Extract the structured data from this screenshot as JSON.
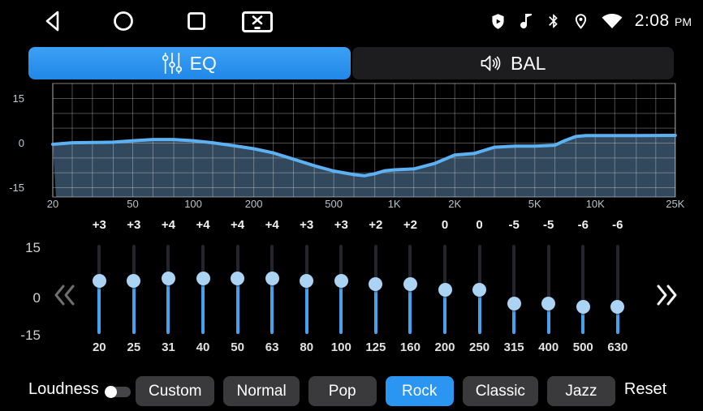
{
  "colors": {
    "accent": "#2b96f2",
    "tab_inactive_bg": "#1d1d20",
    "slider_track": "#24262b",
    "slider_fill": "#45a2ea",
    "slider_thumb": "#abd4f4",
    "curve_line": "#5cb1f2",
    "curve_fill": "rgba(118,172,222,0.42)",
    "grid_line": "rgba(255,255,255,0.30)",
    "button_bg": "#3a3a3c"
  },
  "status_bar": {
    "time": "2:08",
    "time_period": "PM",
    "nav_icons": [
      {
        "name": "back-icon",
        "shape": "triangle-left-outline"
      },
      {
        "name": "home-icon",
        "shape": "circle-outline"
      },
      {
        "name": "recents-icon",
        "shape": "square-outline"
      },
      {
        "name": "screenshot-icon",
        "shape": "monitor-with-x"
      }
    ],
    "status_icons": [
      {
        "name": "security-shield-icon",
        "shape": "shield-with-play"
      },
      {
        "name": "music-note-icon",
        "shape": "eighth-note"
      },
      {
        "name": "bluetooth-icon",
        "shape": "bluetooth-rune"
      },
      {
        "name": "location-icon",
        "shape": "map-pin"
      },
      {
        "name": "wifi-icon",
        "shape": "wifi-wedge"
      }
    ]
  },
  "tabs": [
    {
      "label": "EQ",
      "icon": "equalizer-sliders-icon",
      "active": true
    },
    {
      "label": "BAL",
      "icon": "speaker-volume-icon",
      "active": false
    }
  ],
  "graph": {
    "y_labels": [
      "15",
      "0",
      "-15"
    ],
    "x_labels": [
      {
        "text": "20",
        "freq": 20
      },
      {
        "text": "50",
        "freq": 50
      },
      {
        "text": "100",
        "freq": 100
      },
      {
        "text": "200",
        "freq": 200
      },
      {
        "text": "500",
        "freq": 500
      },
      {
        "text": "1K",
        "freq": 1000
      },
      {
        "text": "2K",
        "freq": 2000
      },
      {
        "text": "5K",
        "freq": 5000
      },
      {
        "text": "10K",
        "freq": 10000
      },
      {
        "text": "25K",
        "freq": 25000
      }
    ],
    "grid_dbs": [
      15,
      10,
      5,
      0,
      -5,
      -10,
      -15
    ],
    "grid_freqs": [
      20,
      25,
      31.5,
      40,
      50,
      63,
      80,
      100,
      125,
      160,
      200,
      250,
      315,
      400,
      500,
      630,
      800,
      1000,
      1250,
      1600,
      2000,
      2500,
      3150,
      4000,
      5000,
      6300,
      8000,
      10000,
      12500,
      16000,
      20000,
      25000
    ]
  },
  "chart_data": {
    "type": "area",
    "title": "EQ frequency response curve",
    "xlabel": "frequency_hz",
    "ylabel": "gain_db",
    "x_scale": "log",
    "x_range": [
      20,
      25000
    ],
    "y_range": [
      -15,
      15
    ],
    "points": [
      [
        20,
        -0.4
      ],
      [
        25,
        0.1
      ],
      [
        31.5,
        0.2
      ],
      [
        40,
        0.3
      ],
      [
        50,
        0.8
      ],
      [
        63,
        1.2
      ],
      [
        80,
        1.2
      ],
      [
        100,
        0.8
      ],
      [
        125,
        0.1
      ],
      [
        160,
        -0.9
      ],
      [
        200,
        -1.9
      ],
      [
        250,
        -3.3
      ],
      [
        315,
        -5.4
      ],
      [
        400,
        -7.6
      ],
      [
        500,
        -9.4
      ],
      [
        630,
        -10.6
      ],
      [
        710,
        -11.0
      ],
      [
        800,
        -10.3
      ],
      [
        900,
        -9.3
      ],
      [
        1000,
        -9.0
      ],
      [
        1250,
        -8.7
      ],
      [
        1600,
        -6.8
      ],
      [
        2000,
        -4.0
      ],
      [
        2500,
        -3.5
      ],
      [
        3150,
        -1.4
      ],
      [
        4000,
        -1.0
      ],
      [
        5000,
        -1.0
      ],
      [
        6300,
        -0.7
      ],
      [
        7100,
        0.9
      ],
      [
        8000,
        2.2
      ],
      [
        9000,
        2.5
      ],
      [
        12500,
        2.5
      ],
      [
        16000,
        2.5
      ],
      [
        25000,
        2.6
      ]
    ]
  },
  "equalizer": {
    "scale_labels": [
      "15",
      "0",
      "-15"
    ],
    "bands": [
      {
        "freq": "20",
        "gain": 3,
        "label": "+3"
      },
      {
        "freq": "25",
        "gain": 3,
        "label": "+3"
      },
      {
        "freq": "31",
        "gain": 4,
        "label": "+4"
      },
      {
        "freq": "40",
        "gain": 4,
        "label": "+4"
      },
      {
        "freq": "50",
        "gain": 4,
        "label": "+4"
      },
      {
        "freq": "63",
        "gain": 4,
        "label": "+4"
      },
      {
        "freq": "80",
        "gain": 3,
        "label": "+3"
      },
      {
        "freq": "100",
        "gain": 3,
        "label": "+3"
      },
      {
        "freq": "125",
        "gain": 2,
        "label": "+2"
      },
      {
        "freq": "160",
        "gain": 2,
        "label": "+2"
      },
      {
        "freq": "200",
        "gain": 0,
        "label": "0"
      },
      {
        "freq": "250",
        "gain": 0,
        "label": "0"
      },
      {
        "freq": "315",
        "gain": -5,
        "label": "-5"
      },
      {
        "freq": "400",
        "gain": -5,
        "label": "-5"
      },
      {
        "freq": "500",
        "gain": -6,
        "label": "-6"
      },
      {
        "freq": "630",
        "gain": -6,
        "label": "-6"
      }
    ]
  },
  "footer": {
    "loudness_label": "Loudness",
    "loudness_on": false,
    "presets": [
      {
        "label": "Custom",
        "active": false
      },
      {
        "label": "Normal",
        "active": false
      },
      {
        "label": "Pop",
        "active": false
      },
      {
        "label": "Rock",
        "active": true
      },
      {
        "label": "Classic",
        "active": false
      },
      {
        "label": "Jazz",
        "active": false
      }
    ],
    "reset_label": "Reset"
  }
}
